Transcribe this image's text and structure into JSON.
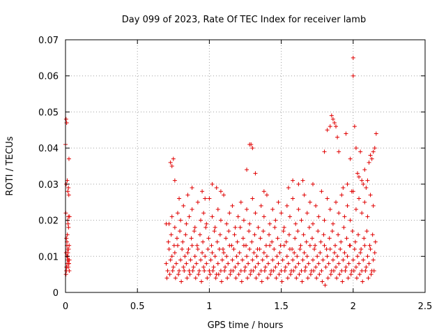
{
  "chart_data": {
    "type": "scatter",
    "title": "Day 099 of 2023, Rate Of TEC Index for receiver lamb",
    "xlabel": "GPS time / hours",
    "ylabel": "ROTI / TECUs",
    "xlim": [
      0,
      2.5
    ],
    "ylim": [
      0,
      0.07
    ],
    "x_ticks": [
      "0",
      "0.5",
      "1",
      "1.5",
      "2",
      "2.5"
    ],
    "y_ticks": [
      "0",
      "0.01",
      "0.02",
      "0.03",
      "0.04",
      "0.05",
      "0.06",
      "0.07"
    ],
    "grid": true,
    "marker": "plus",
    "color": "#e00000",
    "series": [
      {
        "x": [
          0.0,
          0.004,
          0.008,
          0.012,
          0.016,
          0.02,
          0.024,
          0.028,
          0.002,
          0.006,
          0.01,
          0.014,
          0.018,
          0.022,
          0.026,
          0.004,
          0.012,
          0.02,
          0.008,
          0.016,
          0.024,
          0.01,
          0.018,
          0.006,
          0.014,
          0.022,
          0.003,
          0.011,
          0.019,
          0.027,
          0.009,
          0.017,
          0.025,
          0.013,
          0.021,
          0.015,
          0.023,
          0.007,
          0.005,
          0.02,
          0.7,
          0.71,
          0.72,
          0.73,
          0.74,
          0.75,
          0.76,
          0.77,
          0.78,
          0.79,
          0.8,
          0.81,
          0.82,
          0.83,
          0.84,
          0.85,
          0.86,
          0.87,
          0.88,
          0.89,
          0.9,
          0.91,
          0.92,
          0.93,
          0.94,
          0.95,
          0.96,
          0.97,
          0.98,
          0.99,
          1.0,
          1.01,
          1.02,
          1.03,
          1.04,
          1.05,
          1.06,
          1.07,
          1.08,
          1.09,
          1.1,
          1.11,
          1.12,
          1.13,
          1.14,
          1.15,
          1.16,
          1.17,
          1.18,
          1.19,
          1.2,
          1.21,
          1.22,
          1.23,
          1.24,
          1.25,
          1.26,
          1.27,
          1.28,
          1.29,
          1.3,
          1.31,
          1.32,
          1.33,
          1.34,
          1.35,
          1.36,
          1.37,
          1.38,
          1.39,
          1.4,
          1.41,
          1.42,
          1.43,
          1.44,
          1.45,
          1.46,
          1.47,
          1.48,
          1.49,
          1.5,
          1.51,
          1.52,
          1.53,
          1.54,
          1.55,
          1.56,
          1.57,
          1.58,
          1.59,
          1.6,
          1.61,
          1.62,
          1.63,
          1.64,
          1.65,
          1.66,
          1.67,
          1.68,
          1.69,
          1.7,
          1.71,
          1.72,
          1.73,
          1.74,
          1.75,
          1.76,
          1.77,
          1.78,
          1.79,
          1.8,
          1.81,
          1.82,
          1.83,
          1.84,
          1.85,
          1.86,
          1.87,
          1.88,
          1.89,
          1.9,
          1.91,
          1.92,
          1.93,
          1.94,
          1.95,
          1.96,
          1.97,
          1.98,
          1.99,
          2.0,
          2.01,
          2.02,
          2.03,
          2.04,
          2.05,
          2.06,
          2.07,
          2.08,
          2.09,
          2.1,
          2.11,
          2.12,
          2.13,
          2.14,
          2.15,
          0.705,
          0.725,
          0.745,
          0.765,
          0.785,
          0.805,
          0.825,
          0.845,
          0.865,
          0.885,
          0.905,
          0.925,
          0.945,
          0.965,
          0.985,
          1.005,
          1.025,
          1.045,
          1.065,
          1.085,
          1.105,
          1.125,
          1.145,
          1.165,
          1.185,
          1.205,
          1.225,
          1.245,
          1.265,
          1.285,
          1.305,
          1.325,
          1.345,
          1.365,
          1.385,
          1.405,
          1.425,
          1.445,
          1.465,
          1.485,
          1.505,
          1.525,
          1.545,
          1.565,
          1.585,
          1.605,
          1.625,
          1.645,
          1.665,
          1.685,
          1.705,
          1.725,
          1.745,
          1.765,
          1.785,
          1.805,
          1.825,
          1.845,
          1.865,
          1.885,
          1.905,
          1.925,
          1.945,
          1.965,
          1.985,
          2.005,
          2.025,
          2.045,
          2.065,
          2.085,
          2.105,
          2.125,
          2.145,
          0.715,
          0.735,
          0.755,
          0.775,
          0.795,
          0.815,
          0.835,
          0.855,
          0.875,
          0.895,
          0.915,
          0.935,
          0.955,
          0.975,
          0.995,
          1.015,
          1.035,
          1.055,
          1.075,
          1.095,
          1.115,
          1.135,
          1.155,
          1.175,
          1.195,
          1.215,
          1.235,
          1.255,
          1.275,
          1.295,
          1.315,
          1.335,
          1.355,
          1.375,
          1.395,
          1.415,
          1.435,
          1.455,
          1.475,
          1.495,
          1.515,
          1.535,
          1.555,
          1.575,
          1.595,
          1.615,
          1.635,
          1.655,
          1.675,
          1.695,
          1.715,
          1.735,
          1.755,
          1.775,
          1.795,
          1.815,
          1.835,
          1.855,
          1.875,
          1.895,
          1.915,
          1.935,
          1.955,
          1.975,
          1.995,
          2.015,
          2.035,
          2.055,
          2.075,
          2.095,
          2.115,
          2.135,
          2.155,
          0.72,
          0.74,
          0.76,
          0.78,
          0.8,
          0.82,
          0.84,
          0.86,
          0.88,
          0.9,
          0.92,
          0.94,
          0.96,
          0.98,
          1.0,
          1.02,
          1.04,
          1.06,
          1.08,
          1.1,
          1.12,
          1.14,
          1.16,
          1.18,
          1.2,
          1.22,
          1.24,
          1.26,
          1.28,
          1.3,
          1.32,
          1.34,
          1.36,
          1.38,
          1.4,
          1.42,
          1.44,
          1.46,
          1.48,
          1.5,
          1.52,
          1.54,
          1.56,
          1.58,
          1.6,
          1.62,
          1.64,
          1.66,
          1.68,
          1.7,
          1.72,
          1.74,
          1.76,
          1.78,
          1.8,
          1.82,
          1.84,
          1.86,
          1.88,
          1.9,
          1.92,
          1.94,
          1.96,
          1.98,
          2.0,
          2.02,
          2.04,
          2.06,
          2.08,
          2.1,
          2.12,
          2.14,
          0.74,
          0.75,
          0.73,
          0.76,
          0.7,
          0.79,
          0.85,
          0.88,
          0.95,
          0.97,
          1.02,
          1.05,
          1.08,
          1.28,
          1.29,
          1.3,
          1.26,
          1.32,
          1.38,
          1.55,
          1.58,
          1.62,
          1.65,
          1.72,
          1.8,
          1.82,
          1.84,
          1.85,
          1.86,
          1.87,
          1.88,
          1.89,
          1.9,
          1.95,
          1.98,
          2.0,
          2.0,
          2.01,
          2.02,
          2.05,
          2.08,
          2.1,
          2.11,
          2.12,
          2.13,
          2.14,
          2.15,
          2.16,
          2.03,
          2.06,
          1.93,
          1.96,
          1.99,
          2.04,
          2.07,
          2.09
        ],
        "y": [
          0.041,
          0.048,
          0.047,
          0.031,
          0.028,
          0.029,
          0.037,
          0.021,
          0.022,
          0.015,
          0.013,
          0.01,
          0.009,
          0.008,
          0.006,
          0.011,
          0.012,
          0.009,
          0.007,
          0.01,
          0.008,
          0.014,
          0.019,
          0.006,
          0.009,
          0.012,
          0.005,
          0.008,
          0.007,
          0.009,
          0.01,
          0.011,
          0.013,
          0.016,
          0.018,
          0.02,
          0.027,
          0.007,
          0.03,
          0.021,
          0.008,
          0.006,
          0.012,
          0.009,
          0.01,
          0.007,
          0.011,
          0.008,
          0.013,
          0.006,
          0.009,
          0.012,
          0.007,
          0.01,
          0.008,
          0.011,
          0.006,
          0.009,
          0.013,
          0.007,
          0.01,
          0.008,
          0.012,
          0.006,
          0.009,
          0.011,
          0.007,
          0.01,
          0.008,
          0.012,
          0.006,
          0.009,
          0.011,
          0.007,
          0.01,
          0.005,
          0.008,
          0.012,
          0.006,
          0.009,
          0.011,
          0.007,
          0.01,
          0.008,
          0.013,
          0.006,
          0.009,
          0.012,
          0.007,
          0.01,
          0.008,
          0.011,
          0.006,
          0.009,
          0.013,
          0.007,
          0.01,
          0.008,
          0.012,
          0.006,
          0.009,
          0.011,
          0.007,
          0.01,
          0.008,
          0.012,
          0.006,
          0.009,
          0.011,
          0.007,
          0.01,
          0.008,
          0.013,
          0.006,
          0.009,
          0.012,
          0.007,
          0.01,
          0.008,
          0.011,
          0.006,
          0.009,
          0.013,
          0.007,
          0.01,
          0.008,
          0.012,
          0.006,
          0.009,
          0.011,
          0.007,
          0.01,
          0.008,
          0.012,
          0.006,
          0.009,
          0.011,
          0.007,
          0.01,
          0.008,
          0.013,
          0.006,
          0.009,
          0.012,
          0.007,
          0.01,
          0.008,
          0.011,
          0.006,
          0.009,
          0.013,
          0.007,
          0.01,
          0.008,
          0.012,
          0.006,
          0.009,
          0.011,
          0.007,
          0.01,
          0.008,
          0.012,
          0.006,
          0.009,
          0.011,
          0.007,
          0.01,
          0.008,
          0.013,
          0.006,
          0.009,
          0.012,
          0.007,
          0.01,
          0.008,
          0.011,
          0.006,
          0.009,
          0.013,
          0.007,
          0.01,
          0.008,
          0.012,
          0.006,
          0.009,
          0.011,
          0.004,
          0.005,
          0.006,
          0.004,
          0.005,
          0.003,
          0.006,
          0.004,
          0.005,
          0.006,
          0.004,
          0.005,
          0.003,
          0.006,
          0.004,
          0.005,
          0.006,
          0.004,
          0.005,
          0.003,
          0.006,
          0.004,
          0.005,
          0.006,
          0.004,
          0.005,
          0.003,
          0.006,
          0.004,
          0.005,
          0.006,
          0.004,
          0.005,
          0.003,
          0.006,
          0.004,
          0.005,
          0.006,
          0.004,
          0.005,
          0.003,
          0.006,
          0.004,
          0.005,
          0.006,
          0.004,
          0.005,
          0.003,
          0.006,
          0.004,
          0.005,
          0.006,
          0.004,
          0.005,
          0.003,
          0.002,
          0.004,
          0.005,
          0.006,
          0.004,
          0.005,
          0.003,
          0.006,
          0.004,
          0.005,
          0.006,
          0.004,
          0.005,
          0.003,
          0.006,
          0.004,
          0.005,
          0.006,
          0.014,
          0.016,
          0.013,
          0.015,
          0.017,
          0.014,
          0.016,
          0.012,
          0.015,
          0.017,
          0.013,
          0.016,
          0.014,
          0.018,
          0.015,
          0.013,
          0.017,
          0.014,
          0.016,
          0.012,
          0.015,
          0.017,
          0.013,
          0.016,
          0.014,
          0.018,
          0.015,
          0.013,
          0.017,
          0.014,
          0.016,
          0.012,
          0.015,
          0.017,
          0.013,
          0.016,
          0.014,
          0.018,
          0.015,
          0.013,
          0.017,
          0.014,
          0.016,
          0.012,
          0.015,
          0.017,
          0.013,
          0.016,
          0.014,
          0.018,
          0.015,
          0.013,
          0.017,
          0.014,
          0.016,
          0.012,
          0.015,
          0.017,
          0.013,
          0.016,
          0.014,
          0.018,
          0.015,
          0.013,
          0.017,
          0.014,
          0.016,
          0.012,
          0.015,
          0.017,
          0.013,
          0.016,
          0.014,
          0.019,
          0.021,
          0.018,
          0.022,
          0.02,
          0.024,
          0.019,
          0.021,
          0.023,
          0.018,
          0.025,
          0.02,
          0.022,
          0.019,
          0.026,
          0.021,
          0.018,
          0.023,
          0.02,
          0.027,
          0.019,
          0.022,
          0.024,
          0.018,
          0.021,
          0.025,
          0.02,
          0.023,
          0.019,
          0.026,
          0.022,
          0.018,
          0.024,
          0.021,
          0.027,
          0.019,
          0.023,
          0.02,
          0.025,
          0.022,
          0.018,
          0.024,
          0.021,
          0.026,
          0.019,
          0.023,
          0.02,
          0.027,
          0.022,
          0.025,
          0.019,
          0.024,
          0.021,
          0.028,
          0.02,
          0.026,
          0.023,
          0.019,
          0.025,
          0.022,
          0.027,
          0.021,
          0.024,
          0.02,
          0.028,
          0.023,
          0.026,
          0.022,
          0.025,
          0.021,
          0.027,
          0.024,
          0.035,
          0.037,
          0.036,
          0.031,
          0.019,
          0.026,
          0.027,
          0.029,
          0.028,
          0.026,
          0.03,
          0.029,
          0.028,
          0.041,
          0.041,
          0.04,
          0.034,
          0.033,
          0.028,
          0.029,
          0.031,
          0.03,
          0.031,
          0.03,
          0.039,
          0.045,
          0.046,
          0.049,
          0.048,
          0.047,
          0.046,
          0.043,
          0.039,
          0.044,
          0.037,
          0.065,
          0.06,
          0.046,
          0.04,
          0.039,
          0.034,
          0.031,
          0.036,
          0.038,
          0.037,
          0.039,
          0.04,
          0.044,
          0.033,
          0.031,
          0.029,
          0.03,
          0.028,
          0.032,
          0.03,
          0.029
        ]
      }
    ]
  }
}
